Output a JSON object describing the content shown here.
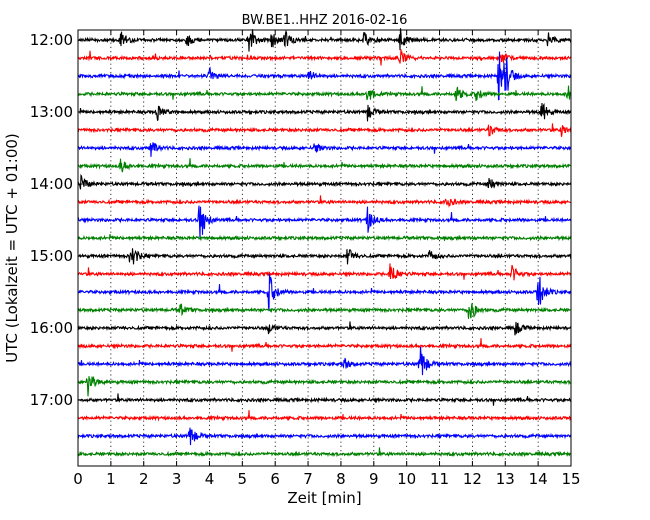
{
  "chart_data": {
    "type": "line",
    "title": "BW.BE1..HHZ 2016-02-16",
    "xlabel": "Zeit  [min]",
    "ylabel": "UTC (Lokalzeit = UTC + 01:00)",
    "xlim": [
      0,
      15
    ],
    "x_ticks": [
      "0",
      "1",
      "2",
      "3",
      "4",
      "5",
      "6",
      "7",
      "8",
      "9",
      "10",
      "11",
      "12",
      "13",
      "14",
      "15"
    ],
    "y_tick_labels": [
      "12:00",
      "13:00",
      "14:00",
      "15:00",
      "16:00",
      "17:00"
    ],
    "trace_interval_min": 15,
    "grid": "vertical dotted",
    "colors": [
      "#000000",
      "#ff0000",
      "#0000ff",
      "#008000"
    ],
    "series": [
      {
        "start": "12:00",
        "events": [
          [
            1.3,
            0.35
          ],
          [
            3.3,
            0.25
          ],
          [
            5.2,
            0.45
          ],
          [
            5.9,
            0.3
          ],
          [
            6.3,
            0.3
          ],
          [
            8.7,
            0.25
          ],
          [
            9.8,
            0.45
          ],
          [
            14.3,
            0.25
          ]
        ]
      },
      {
        "start": "12:15",
        "events": [
          [
            9.8,
            0.35
          ],
          [
            12.9,
            0.2
          ]
        ]
      },
      {
        "start": "12:30",
        "events": [
          [
            12.8,
            1.0
          ],
          [
            13.0,
            0.55
          ],
          [
            7.0,
            0.25
          ],
          [
            4.0,
            0.25
          ]
        ]
      },
      {
        "start": "12:45",
        "events": [
          [
            8.8,
            0.3
          ],
          [
            11.5,
            0.3
          ],
          [
            12.1,
            0.25
          ],
          [
            14.9,
            0.3
          ]
        ]
      },
      {
        "start": "13:00",
        "events": [
          [
            2.4,
            0.3
          ],
          [
            8.8,
            0.3
          ],
          [
            14.1,
            0.4
          ]
        ]
      },
      {
        "start": "13:15",
        "events": [
          [
            12.5,
            0.25
          ],
          [
            14.7,
            0.2
          ]
        ]
      },
      {
        "start": "13:30",
        "events": [
          [
            2.2,
            0.3
          ],
          [
            7.2,
            0.2
          ]
        ]
      },
      {
        "start": "13:45",
        "events": [
          [
            1.3,
            0.25
          ]
        ]
      },
      {
        "start": "14:00",
        "events": [
          [
            0.1,
            0.3
          ],
          [
            12.5,
            0.25
          ]
        ]
      },
      {
        "start": "14:15",
        "events": [
          [
            11.2,
            0.2
          ]
        ]
      },
      {
        "start": "14:30",
        "events": [
          [
            3.7,
            0.85
          ],
          [
            8.8,
            0.45
          ]
        ]
      },
      {
        "start": "14:45",
        "events": []
      },
      {
        "start": "15:00",
        "events": [
          [
            1.6,
            0.55
          ],
          [
            8.2,
            0.3
          ],
          [
            10.7,
            0.2
          ]
        ]
      },
      {
        "start": "15:15",
        "events": [
          [
            9.5,
            0.5
          ],
          [
            13.2,
            0.3
          ]
        ]
      },
      {
        "start": "15:30",
        "events": [
          [
            5.8,
            0.7
          ],
          [
            14.0,
            0.75
          ]
        ]
      },
      {
        "start": "15:45",
        "events": [
          [
            11.9,
            0.5
          ],
          [
            3.1,
            0.2
          ]
        ]
      },
      {
        "start": "16:00",
        "events": [
          [
            13.3,
            0.25
          ],
          [
            5.8,
            0.2
          ]
        ]
      },
      {
        "start": "16:15",
        "events": []
      },
      {
        "start": "16:30",
        "events": [
          [
            10.4,
            0.75
          ],
          [
            8.1,
            0.2
          ]
        ]
      },
      {
        "start": "16:45",
        "events": [
          [
            0.3,
            0.5
          ]
        ]
      },
      {
        "start": "17:00",
        "events": []
      },
      {
        "start": "17:15",
        "events": []
      },
      {
        "start": "17:30",
        "events": [
          [
            3.4,
            0.4
          ]
        ]
      },
      {
        "start": "17:45",
        "events": []
      }
    ]
  }
}
